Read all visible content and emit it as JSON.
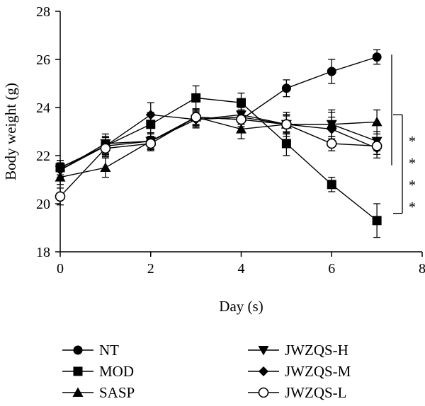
{
  "chart_data": {
    "type": "line",
    "xlabel": "Day (s)",
    "ylabel": "Body weight (g)",
    "xlim": [
      0,
      8
    ],
    "ylim": [
      18,
      28
    ],
    "x_ticks": [
      0,
      2,
      4,
      6,
      8
    ],
    "y_ticks": [
      18,
      20,
      22,
      24,
      26,
      28
    ],
    "grid": false,
    "legend_position": "bottom",
    "x": [
      0,
      1,
      2,
      3,
      4,
      5,
      6,
      7
    ],
    "series": [
      {
        "name": "NT",
        "marker": "filled-circle",
        "values": [
          21.5,
          22.4,
          22.6,
          23.6,
          23.5,
          24.8,
          25.5,
          26.1
        ],
        "errors": [
          0.3,
          0.4,
          0.3,
          0.3,
          0.3,
          0.35,
          0.5,
          0.3
        ]
      },
      {
        "name": "MOD",
        "marker": "filled-square",
        "values": [
          21.5,
          22.4,
          23.3,
          24.4,
          24.2,
          22.5,
          20.8,
          19.3
        ],
        "errors": [
          0.3,
          0.35,
          0.5,
          0.5,
          0.4,
          0.5,
          0.3,
          0.7
        ]
      },
      {
        "name": "SASP",
        "marker": "filled-triangle-up",
        "values": [
          21.1,
          21.5,
          22.6,
          23.6,
          23.1,
          23.3,
          23.3,
          23.4
        ],
        "errors": [
          0.3,
          0.4,
          0.35,
          0.35,
          0.4,
          0.5,
          0.5,
          0.5
        ]
      },
      {
        "name": "JWZQS-H",
        "marker": "filled-triangle-down",
        "values": [
          21.4,
          22.5,
          22.6,
          23.5,
          23.7,
          23.3,
          23.3,
          22.6
        ],
        "errors": [
          0.3,
          0.4,
          0.35,
          0.3,
          0.3,
          0.4,
          0.6,
          0.4
        ]
      },
      {
        "name": "JWZQS-M",
        "marker": "filled-diamond",
        "values": [
          21.4,
          22.4,
          23.7,
          23.5,
          23.6,
          23.3,
          23.1,
          22.3
        ],
        "errors": [
          0.3,
          0.35,
          0.5,
          0.35,
          0.3,
          0.4,
          0.5,
          0.4
        ]
      },
      {
        "name": "JWZQS-L",
        "marker": "open-circle",
        "values": [
          20.3,
          22.3,
          22.5,
          23.6,
          23.5,
          23.3,
          22.5,
          22.4
        ],
        "errors": [
          0.35,
          0.35,
          0.3,
          0.3,
          0.3,
          0.35,
          0.3,
          0.35
        ]
      }
    ],
    "significance": [
      {
        "label": "*",
        "bracket_y": [
          26.2,
          21.6
        ]
      },
      {
        "label": "*",
        "bracket_y": [
          23.7,
          19.6
        ]
      }
    ],
    "annotations": [
      "*",
      "*",
      "*",
      "*"
    ],
    "colors": {
      "ink": "#000000",
      "background": "#ffffff"
    }
  }
}
